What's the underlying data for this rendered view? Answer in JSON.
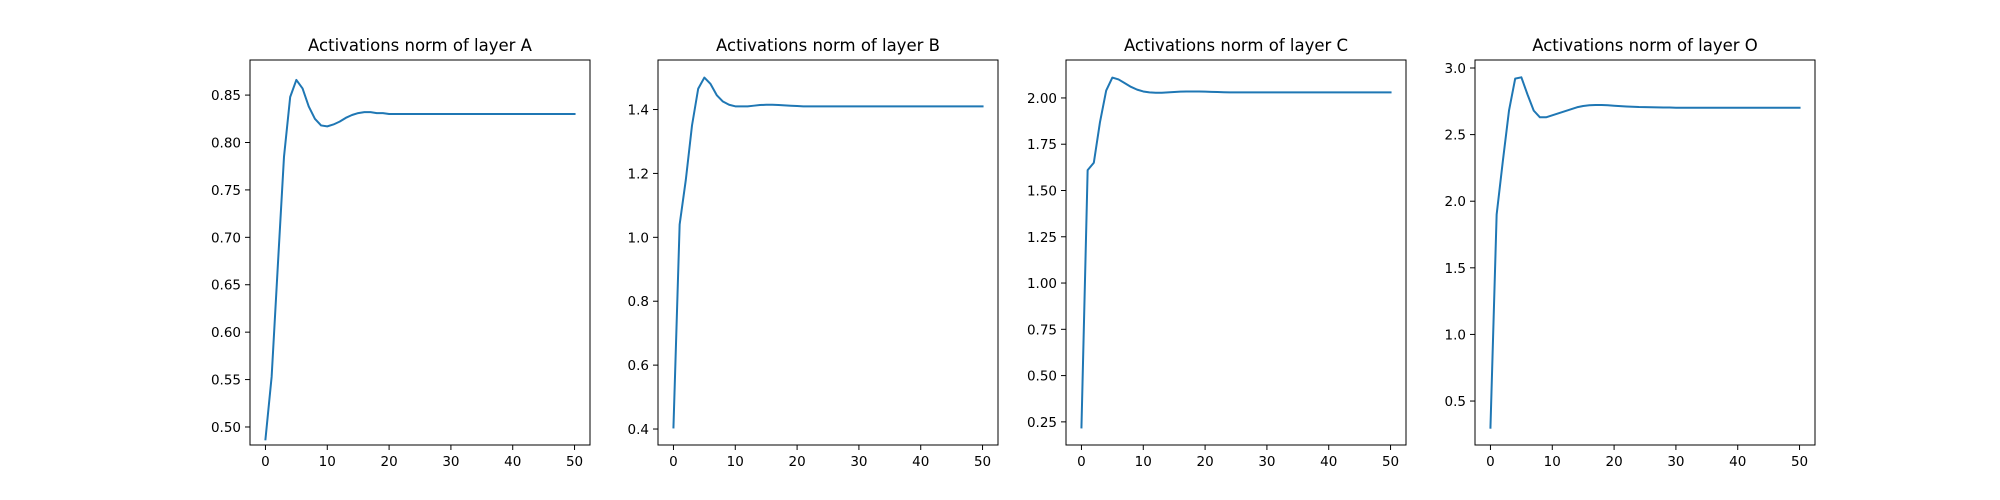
{
  "chart_data": [
    {
      "type": "line",
      "title": "Activations norm of layer A",
      "xlabel": "",
      "ylabel": "",
      "xlim": [
        -2.5,
        52.5
      ],
      "ylim": [
        0.481,
        0.887
      ],
      "xticks": [
        0,
        10,
        20,
        30,
        40,
        50
      ],
      "yticks": [
        0.5,
        0.55,
        0.6,
        0.65,
        0.7,
        0.75,
        0.8,
        0.85
      ],
      "ytick_decimals": 2,
      "grid": false,
      "color": "#1f77b4",
      "series": [
        {
          "x": [
            0,
            1,
            2,
            3,
            4,
            5,
            6,
            7,
            8,
            9,
            10,
            11,
            12,
            13,
            14,
            15,
            16,
            17,
            18,
            19,
            20,
            21,
            22,
            23,
            24,
            25,
            26,
            27,
            28,
            29,
            30,
            31,
            32,
            33,
            34,
            35,
            36,
            37,
            38,
            39,
            40,
            41,
            42,
            43,
            44,
            45,
            46,
            47,
            48,
            49,
            50
          ],
          "y": [
            0.487,
            0.553,
            0.67,
            0.785,
            0.848,
            0.866,
            0.857,
            0.838,
            0.825,
            0.818,
            0.817,
            0.819,
            0.822,
            0.826,
            0.829,
            0.831,
            0.832,
            0.832,
            0.831,
            0.831,
            0.83,
            0.83,
            0.83,
            0.83,
            0.83,
            0.83,
            0.83,
            0.83,
            0.83,
            0.83,
            0.83,
            0.83,
            0.83,
            0.83,
            0.83,
            0.83,
            0.83,
            0.83,
            0.83,
            0.83,
            0.83,
            0.83,
            0.83,
            0.83,
            0.83,
            0.83,
            0.83,
            0.83,
            0.83,
            0.83,
            0.83
          ]
        }
      ]
    },
    {
      "type": "line",
      "title": "Activations norm of layer B",
      "xlabel": "",
      "ylabel": "",
      "xlim": [
        -2.5,
        52.5
      ],
      "ylim": [
        0.35,
        1.555
      ],
      "xticks": [
        0,
        10,
        20,
        30,
        40,
        50
      ],
      "yticks": [
        0.4,
        0.6,
        0.8,
        1.0,
        1.2,
        1.4
      ],
      "ytick_decimals": 1,
      "grid": false,
      "color": "#1f77b4",
      "series": [
        {
          "x": [
            0,
            1,
            2,
            3,
            4,
            5,
            6,
            7,
            8,
            9,
            10,
            11,
            12,
            13,
            14,
            15,
            16,
            17,
            18,
            19,
            20,
            21,
            22,
            23,
            24,
            25,
            26,
            27,
            28,
            29,
            30,
            31,
            32,
            33,
            34,
            35,
            36,
            37,
            38,
            39,
            40,
            41,
            42,
            43,
            44,
            45,
            46,
            47,
            48,
            49,
            50
          ],
          "y": [
            0.405,
            1.04,
            1.18,
            1.35,
            1.465,
            1.5,
            1.48,
            1.445,
            1.425,
            1.415,
            1.41,
            1.41,
            1.41,
            1.412,
            1.414,
            1.415,
            1.415,
            1.414,
            1.413,
            1.412,
            1.411,
            1.41,
            1.41,
            1.41,
            1.41,
            1.41,
            1.41,
            1.41,
            1.41,
            1.41,
            1.41,
            1.41,
            1.41,
            1.41,
            1.41,
            1.41,
            1.41,
            1.41,
            1.41,
            1.41,
            1.41,
            1.41,
            1.41,
            1.41,
            1.41,
            1.41,
            1.41,
            1.41,
            1.41,
            1.41,
            1.41
          ]
        }
      ]
    },
    {
      "type": "line",
      "title": "Activations norm of layer C",
      "xlabel": "",
      "ylabel": "",
      "xlim": [
        -2.5,
        52.5
      ],
      "ylim": [
        0.125,
        2.205
      ],
      "xticks": [
        0,
        10,
        20,
        30,
        40,
        50
      ],
      "yticks": [
        0.25,
        0.5,
        0.75,
        1.0,
        1.25,
        1.5,
        1.75,
        2.0
      ],
      "ytick_decimals": 2,
      "grid": false,
      "color": "#1f77b4",
      "series": [
        {
          "x": [
            0,
            1,
            2,
            3,
            4,
            5,
            6,
            7,
            8,
            9,
            10,
            11,
            12,
            13,
            14,
            15,
            16,
            17,
            18,
            19,
            20,
            21,
            22,
            23,
            24,
            25,
            26,
            27,
            28,
            29,
            30,
            31,
            32,
            33,
            34,
            35,
            36,
            37,
            38,
            39,
            40,
            41,
            42,
            43,
            44,
            45,
            46,
            47,
            48,
            49,
            50
          ],
          "y": [
            0.22,
            1.61,
            1.65,
            1.87,
            2.04,
            2.11,
            2.1,
            2.08,
            2.06,
            2.045,
            2.035,
            2.03,
            2.028,
            2.028,
            2.03,
            2.032,
            2.034,
            2.035,
            2.035,
            2.035,
            2.034,
            2.033,
            2.032,
            2.031,
            2.03,
            2.03,
            2.03,
            2.03,
            2.03,
            2.03,
            2.03,
            2.03,
            2.03,
            2.03,
            2.03,
            2.03,
            2.03,
            2.03,
            2.03,
            2.03,
            2.03,
            2.03,
            2.03,
            2.03,
            2.03,
            2.03,
            2.03,
            2.03,
            2.03,
            2.03,
            2.03
          ]
        }
      ]
    },
    {
      "type": "line",
      "title": "Activations norm of layer O",
      "xlabel": "",
      "ylabel": "",
      "xlim": [
        -2.5,
        52.5
      ],
      "ylim": [
        0.17,
        3.06
      ],
      "xticks": [
        0,
        10,
        20,
        30,
        40,
        50
      ],
      "yticks": [
        0.5,
        1.0,
        1.5,
        2.0,
        2.5,
        3.0
      ],
      "ytick_decimals": 1,
      "grid": false,
      "color": "#1f77b4",
      "series": [
        {
          "x": [
            0,
            1,
            2,
            3,
            4,
            5,
            6,
            7,
            8,
            9,
            10,
            11,
            12,
            13,
            14,
            15,
            16,
            17,
            18,
            19,
            20,
            21,
            22,
            23,
            24,
            25,
            26,
            27,
            28,
            29,
            30,
            31,
            32,
            33,
            34,
            35,
            36,
            37,
            38,
            39,
            40,
            41,
            42,
            43,
            44,
            45,
            46,
            47,
            48,
            49,
            50
          ],
          "y": [
            0.3,
            1.9,
            2.3,
            2.68,
            2.92,
            2.93,
            2.8,
            2.68,
            2.63,
            2.63,
            2.645,
            2.66,
            2.675,
            2.69,
            2.705,
            2.715,
            2.72,
            2.722,
            2.722,
            2.72,
            2.717,
            2.714,
            2.711,
            2.709,
            2.707,
            2.706,
            2.705,
            2.704,
            2.703,
            2.703,
            2.702,
            2.702,
            2.702,
            2.702,
            2.702,
            2.702,
            2.702,
            2.702,
            2.702,
            2.702,
            2.702,
            2.702,
            2.702,
            2.702,
            2.702,
            2.702,
            2.702,
            2.702,
            2.702,
            2.702,
            2.702
          ]
        }
      ]
    }
  ]
}
